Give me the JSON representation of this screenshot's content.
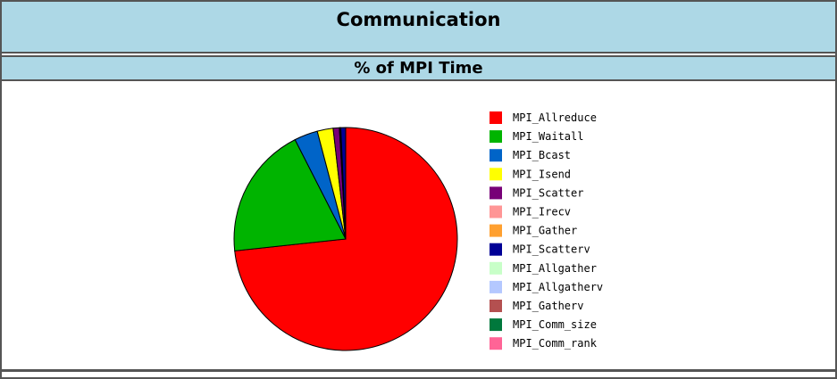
{
  "header": {
    "title": "Communication",
    "subtitle": "% of MPI Time"
  },
  "chart_data": {
    "type": "pie",
    "title": "% of MPI Time",
    "categories": [
      "MPI_Allreduce",
      "MPI_Waitall",
      "MPI_Bcast",
      "MPI_Isend",
      "MPI_Scatter",
      "MPI_Irecv",
      "MPI_Gather",
      "MPI_Scatterv",
      "MPI_Allgather",
      "MPI_Allgatherv",
      "MPI_Gatherv",
      "MPI_Comm_size",
      "MPI_Comm_rank"
    ],
    "values": [
      73.3,
      19.2,
      3.4,
      2.3,
      0.9,
      0.1,
      0.1,
      0.7,
      0.0,
      0.0,
      0.0,
      0.0,
      0.0
    ],
    "colors": [
      "#ff0000",
      "#00b400",
      "#0064c8",
      "#ffff00",
      "#780078",
      "#ff9696",
      "#ffa030",
      "#000096",
      "#c8ffc8",
      "#b4c8ff",
      "#b45050",
      "#00783c",
      "#ff6496"
    ],
    "legend": "right",
    "start_angle_deg": 0,
    "direction": "clockwise"
  }
}
